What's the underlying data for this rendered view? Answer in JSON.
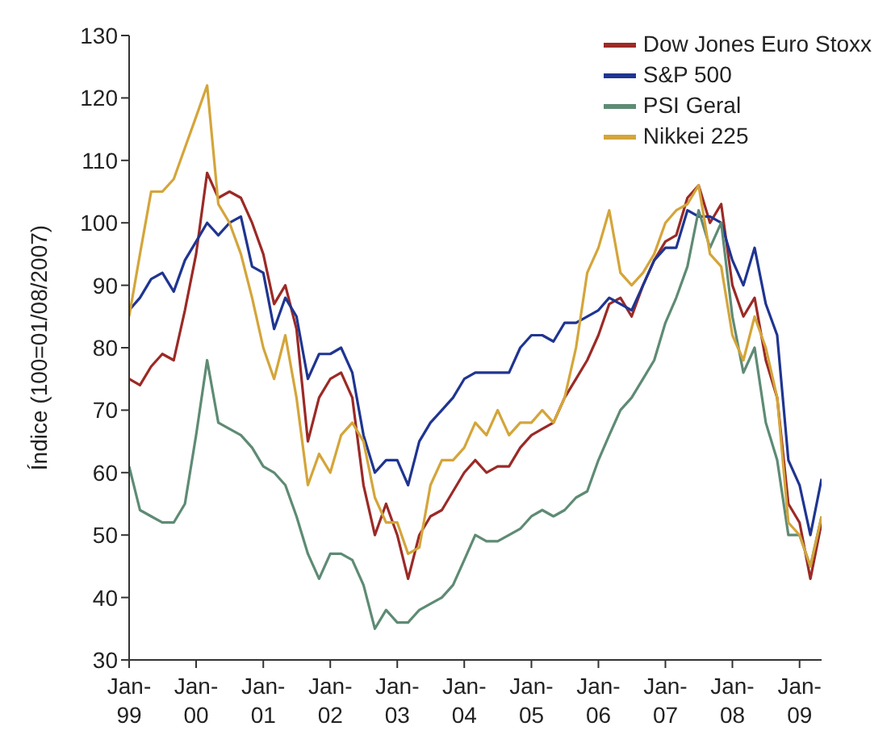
{
  "chart_data": {
    "type": "line",
    "ylabel": "Índice (100=01/08/2007)",
    "x": [
      "1999-01",
      "1999-03",
      "1999-05",
      "1999-07",
      "1999-09",
      "1999-11",
      "2000-01",
      "2000-03",
      "2000-05",
      "2000-07",
      "2000-09",
      "2000-11",
      "2001-01",
      "2001-03",
      "2001-05",
      "2001-07",
      "2001-09",
      "2001-11",
      "2002-01",
      "2002-03",
      "2002-05",
      "2002-07",
      "2002-09",
      "2002-11",
      "2003-01",
      "2003-03",
      "2003-05",
      "2003-07",
      "2003-09",
      "2003-11",
      "2004-01",
      "2004-03",
      "2004-05",
      "2004-07",
      "2004-09",
      "2004-11",
      "2005-01",
      "2005-03",
      "2005-05",
      "2005-07",
      "2005-09",
      "2005-11",
      "2006-01",
      "2006-03",
      "2006-05",
      "2006-07",
      "2006-09",
      "2006-11",
      "2007-01",
      "2007-03",
      "2007-05",
      "2007-07",
      "2007-09",
      "2007-11",
      "2008-01",
      "2008-03",
      "2008-05",
      "2008-07",
      "2008-09",
      "2008-11",
      "2009-01",
      "2009-03",
      "2009-05"
    ],
    "series": [
      {
        "name": "Dow Jones Euro Stoxx",
        "color": "#9b2a26",
        "values": [
          75,
          74,
          77,
          79,
          78,
          86,
          95,
          108,
          104,
          105,
          104,
          100,
          95,
          87,
          90,
          83,
          65,
          72,
          75,
          76,
          72,
          58,
          50,
          55,
          50,
          43,
          50,
          53,
          54,
          57,
          60,
          62,
          60,
          61,
          61,
          64,
          66,
          67,
          68,
          72,
          75,
          78,
          82,
          87,
          88,
          85,
          90,
          94,
          97,
          98,
          104,
          106,
          100,
          103,
          90,
          85,
          88,
          78,
          72,
          55,
          52,
          43,
          52
        ]
      },
      {
        "name": "S&P 500",
        "color": "#1f3591",
        "values": [
          86,
          88,
          91,
          92,
          89,
          94,
          97,
          100,
          98,
          100,
          101,
          93,
          92,
          83,
          88,
          85,
          75,
          79,
          79,
          80,
          76,
          66,
          60,
          62,
          62,
          58,
          65,
          68,
          70,
          72,
          75,
          76,
          76,
          76,
          76,
          80,
          82,
          82,
          81,
          84,
          84,
          85,
          86,
          88,
          87,
          86,
          90,
          94,
          96,
          96,
          102,
          101,
          101,
          100,
          94,
          90,
          96,
          87,
          82,
          62,
          58,
          50,
          59
        ]
      },
      {
        "name": "PSI Geral",
        "color": "#5e8b74",
        "values": [
          61,
          54,
          53,
          52,
          52,
          55,
          66,
          78,
          68,
          67,
          66,
          64,
          61,
          60,
          58,
          53,
          47,
          43,
          47,
          47,
          46,
          42,
          35,
          38,
          36,
          36,
          38,
          39,
          40,
          42,
          46,
          50,
          49,
          49,
          50,
          51,
          53,
          54,
          53,
          54,
          56,
          57,
          62,
          66,
          70,
          72,
          75,
          78,
          84,
          88,
          93,
          102,
          96,
          100,
          85,
          76,
          80,
          68,
          62,
          50,
          50,
          45,
          53
        ]
      },
      {
        "name": "Nikkei 225",
        "color": "#d4a53a",
        "values": [
          85,
          95,
          105,
          105,
          107,
          112,
          117,
          122,
          103,
          100,
          95,
          88,
          80,
          75,
          82,
          72,
          58,
          63,
          60,
          66,
          68,
          65,
          56,
          52,
          52,
          47,
          48,
          58,
          62,
          62,
          64,
          68,
          66,
          70,
          66,
          68,
          68,
          70,
          68,
          72,
          80,
          92,
          96,
          102,
          92,
          90,
          92,
          95,
          100,
          102,
          103,
          106,
          95,
          93,
          82,
          78,
          85,
          80,
          72,
          52,
          50,
          45,
          53
        ]
      }
    ],
    "xlim": [
      "1999-01",
      "2009-05"
    ],
    "xticks": [
      {
        "value": "1999-01",
        "label": "Jan-99"
      },
      {
        "value": "2000-01",
        "label": "Jan-00"
      },
      {
        "value": "2001-01",
        "label": "Jan-01"
      },
      {
        "value": "2002-01",
        "label": "Jan-02"
      },
      {
        "value": "2003-01",
        "label": "Jan-03"
      },
      {
        "value": "2004-01",
        "label": "Jan-04"
      },
      {
        "value": "2005-01",
        "label": "Jan-05"
      },
      {
        "value": "2006-01",
        "label": "Jan-06"
      },
      {
        "value": "2007-01",
        "label": "Jan-07"
      },
      {
        "value": "2008-01",
        "label": "Jan-08"
      },
      {
        "value": "2009-01",
        "label": "Jan-09"
      }
    ],
    "ylim": [
      30,
      130
    ],
    "yticks": [
      30,
      40,
      50,
      60,
      70,
      80,
      90,
      100,
      110,
      120,
      130
    ],
    "legend": "top right",
    "grid": false,
    "marker": "none",
    "line_style": "solid"
  }
}
